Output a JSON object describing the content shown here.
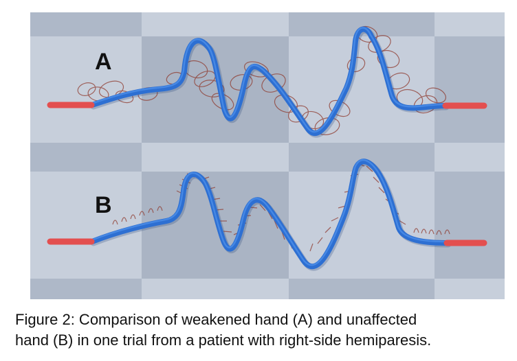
{
  "figure": {
    "panel_labels": [
      "A",
      "B"
    ],
    "caption_line_1": "Figure 2: Comparison of weakened hand (A) and unaffected",
    "caption_line_2": "hand (B) in one trial from a patient with right-side hemiparesis."
  },
  "colors": {
    "checker_dark": "#a3aec0",
    "checker_light": "#b8c2d1",
    "checker_mid": "#c4ccd8",
    "trajectory_blue": "#2d6fd2",
    "trajectory_blue_highlight": "#5b9cf2",
    "endpoint_red": "#e34f4f",
    "loop_brown": "#8f3a2f"
  }
}
